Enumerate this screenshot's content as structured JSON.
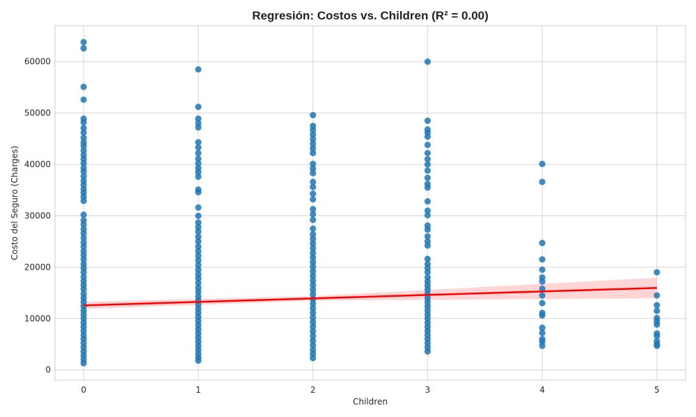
{
  "chart_data": {
    "type": "scatter",
    "title": "Regresión: Costos vs. Children (R² = 0.00)",
    "xlabel": "Children",
    "ylabel": "Costo del Seguro (Charges)",
    "xlim": [
      -0.25,
      5.25
    ],
    "ylim": [
      -2000,
      67000
    ],
    "x_ticks": [
      0,
      1,
      2,
      3,
      4,
      5
    ],
    "y_ticks": [
      0,
      10000,
      20000,
      30000,
      40000,
      50000,
      60000
    ],
    "grid": true,
    "colors": {
      "points": "#1f77b4",
      "regression": "#ff0000",
      "ci_band": "#ffb3b3",
      "grid": "#d6d6d6",
      "spine": "#cccccc"
    },
    "regression": {
      "slope": 680,
      "intercept": 12550,
      "ci_halfwidth_at": [
        [
          0,
          700
        ],
        [
          2,
          450
        ],
        [
          5,
          2000
        ]
      ]
    },
    "series": [
      {
        "values": [
          [
            0,
            63800
          ],
          [
            0,
            62600
          ],
          [
            0,
            55100
          ],
          [
            0,
            52600
          ],
          [
            0,
            48900
          ],
          [
            0,
            48200
          ],
          [
            0,
            47100
          ],
          [
            0,
            46200
          ],
          [
            0,
            45200
          ],
          [
            0,
            44300
          ],
          [
            0,
            43600
          ],
          [
            0,
            42700
          ],
          [
            0,
            41800
          ],
          [
            0,
            41000
          ],
          [
            0,
            40200
          ],
          [
            0,
            39300
          ],
          [
            0,
            38600
          ],
          [
            0,
            37700
          ],
          [
            0,
            36800
          ],
          [
            0,
            36000
          ],
          [
            0,
            35200
          ],
          [
            0,
            34500
          ],
          [
            0,
            33700
          ],
          [
            0,
            32900
          ],
          [
            0,
            30200
          ],
          [
            0,
            29100
          ],
          [
            0,
            28300
          ],
          [
            0,
            27400
          ],
          [
            0,
            26600
          ],
          [
            0,
            25700
          ],
          [
            0,
            24800
          ],
          [
            0,
            24000
          ],
          [
            0,
            23100
          ],
          [
            0,
            22300
          ],
          [
            0,
            21500
          ],
          [
            0,
            20600
          ],
          [
            0,
            19800
          ],
          [
            0,
            19000
          ],
          [
            0,
            18100
          ],
          [
            0,
            17300
          ],
          [
            0,
            16500
          ],
          [
            0,
            15700
          ],
          [
            0,
            14800
          ],
          [
            0,
            14000
          ],
          [
            0,
            13200
          ],
          [
            0,
            12400
          ],
          [
            0,
            11600
          ],
          [
            0,
            10800
          ],
          [
            0,
            10000
          ],
          [
            0,
            9200
          ],
          [
            0,
            8400
          ],
          [
            0,
            7600
          ],
          [
            0,
            6800
          ],
          [
            0,
            6000
          ],
          [
            0,
            5200
          ],
          [
            0,
            4400
          ],
          [
            0,
            3600
          ],
          [
            0,
            2800
          ],
          [
            0,
            2000
          ],
          [
            0,
            1300
          ],
          [
            1,
            58500
          ],
          [
            1,
            51200
          ],
          [
            1,
            48900
          ],
          [
            1,
            48000
          ],
          [
            1,
            47200
          ],
          [
            1,
            44300
          ],
          [
            1,
            43300
          ],
          [
            1,
            42200
          ],
          [
            1,
            41100
          ],
          [
            1,
            40200
          ],
          [
            1,
            39300
          ],
          [
            1,
            38500
          ],
          [
            1,
            37600
          ],
          [
            1,
            35100
          ],
          [
            1,
            34600
          ],
          [
            1,
            31600
          ],
          [
            1,
            30000
          ],
          [
            1,
            28700
          ],
          [
            1,
            27800
          ],
          [
            1,
            26900
          ],
          [
            1,
            25900
          ],
          [
            1,
            25000
          ],
          [
            1,
            24000
          ],
          [
            1,
            23100
          ],
          [
            1,
            22200
          ],
          [
            1,
            21300
          ],
          [
            1,
            20400
          ],
          [
            1,
            19500
          ],
          [
            1,
            18600
          ],
          [
            1,
            17800
          ],
          [
            1,
            16900
          ],
          [
            1,
            16000
          ],
          [
            1,
            15200
          ],
          [
            1,
            14300
          ],
          [
            1,
            13500
          ],
          [
            1,
            12700
          ],
          [
            1,
            11900
          ],
          [
            1,
            11100
          ],
          [
            1,
            10300
          ],
          [
            1,
            9500
          ],
          [
            1,
            8700
          ],
          [
            1,
            7900
          ],
          [
            1,
            7100
          ],
          [
            1,
            6300
          ],
          [
            1,
            5500
          ],
          [
            1,
            4700
          ],
          [
            1,
            3900
          ],
          [
            1,
            3100
          ],
          [
            1,
            2400
          ],
          [
            1,
            1800
          ],
          [
            2,
            49600
          ],
          [
            2,
            47500
          ],
          [
            2,
            46700
          ],
          [
            2,
            45800
          ],
          [
            2,
            44900
          ],
          [
            2,
            44000
          ],
          [
            2,
            43100
          ],
          [
            2,
            42200
          ],
          [
            2,
            40100
          ],
          [
            2,
            39200
          ],
          [
            2,
            38300
          ],
          [
            2,
            36600
          ],
          [
            2,
            35600
          ],
          [
            2,
            34300
          ],
          [
            2,
            33200
          ],
          [
            2,
            31300
          ],
          [
            2,
            30300
          ],
          [
            2,
            29200
          ],
          [
            2,
            27500
          ],
          [
            2,
            26400
          ],
          [
            2,
            25500
          ],
          [
            2,
            24600
          ],
          [
            2,
            23700
          ],
          [
            2,
            22800
          ],
          [
            2,
            21900
          ],
          [
            2,
            21000
          ],
          [
            2,
            20100
          ],
          [
            2,
            19200
          ],
          [
            2,
            18300
          ],
          [
            2,
            17400
          ],
          [
            2,
            16500
          ],
          [
            2,
            15600
          ],
          [
            2,
            14700
          ],
          [
            2,
            13800
          ],
          [
            2,
            12900
          ],
          [
            2,
            12000
          ],
          [
            2,
            11100
          ],
          [
            2,
            10200
          ],
          [
            2,
            9300
          ],
          [
            2,
            8400
          ],
          [
            2,
            7500
          ],
          [
            2,
            6600
          ],
          [
            2,
            5700
          ],
          [
            2,
            4800
          ],
          [
            2,
            3900
          ],
          [
            2,
            3100
          ],
          [
            2,
            2300
          ],
          [
            3,
            60000
          ],
          [
            3,
            48500
          ],
          [
            3,
            46800
          ],
          [
            3,
            46200
          ],
          [
            3,
            45400
          ],
          [
            3,
            43800
          ],
          [
            3,
            42200
          ],
          [
            3,
            41000
          ],
          [
            3,
            40000
          ],
          [
            3,
            38800
          ],
          [
            3,
            37400
          ],
          [
            3,
            36200
          ],
          [
            3,
            35500
          ],
          [
            3,
            32800
          ],
          [
            3,
            31000
          ],
          [
            3,
            30100
          ],
          [
            3,
            28100
          ],
          [
            3,
            27300
          ],
          [
            3,
            26000
          ],
          [
            3,
            25000
          ],
          [
            3,
            24200
          ],
          [
            3,
            21600
          ],
          [
            3,
            20600
          ],
          [
            3,
            19800
          ],
          [
            3,
            19000
          ],
          [
            3,
            18000
          ],
          [
            3,
            17200
          ],
          [
            3,
            16400
          ],
          [
            3,
            15600
          ],
          [
            3,
            14800
          ],
          [
            3,
            14000
          ],
          [
            3,
            13200
          ],
          [
            3,
            12400
          ],
          [
            3,
            11600
          ],
          [
            3,
            10800
          ],
          [
            3,
            10000
          ],
          [
            3,
            9200
          ],
          [
            3,
            8400
          ],
          [
            3,
            7600
          ],
          [
            3,
            6800
          ],
          [
            3,
            6000
          ],
          [
            3,
            5200
          ],
          [
            3,
            4400
          ],
          [
            3,
            3600
          ],
          [
            4,
            40100
          ],
          [
            4,
            36600
          ],
          [
            4,
            24700
          ],
          [
            4,
            21500
          ],
          [
            4,
            19500
          ],
          [
            4,
            18000
          ],
          [
            4,
            17200
          ],
          [
            4,
            15800
          ],
          [
            4,
            14500
          ],
          [
            4,
            13000
          ],
          [
            4,
            11100
          ],
          [
            4,
            10600
          ],
          [
            4,
            8200
          ],
          [
            4,
            7200
          ],
          [
            4,
            6000
          ],
          [
            4,
            5500
          ],
          [
            4,
            4700
          ],
          [
            5,
            19000
          ],
          [
            5,
            14500
          ],
          [
            5,
            12600
          ],
          [
            5,
            11500
          ],
          [
            5,
            10100
          ],
          [
            5,
            9400
          ],
          [
            5,
            8800
          ],
          [
            5,
            7100
          ],
          [
            5,
            6600
          ],
          [
            5,
            5600
          ],
          [
            5,
            5000
          ],
          [
            5,
            4700
          ]
        ]
      }
    ]
  }
}
